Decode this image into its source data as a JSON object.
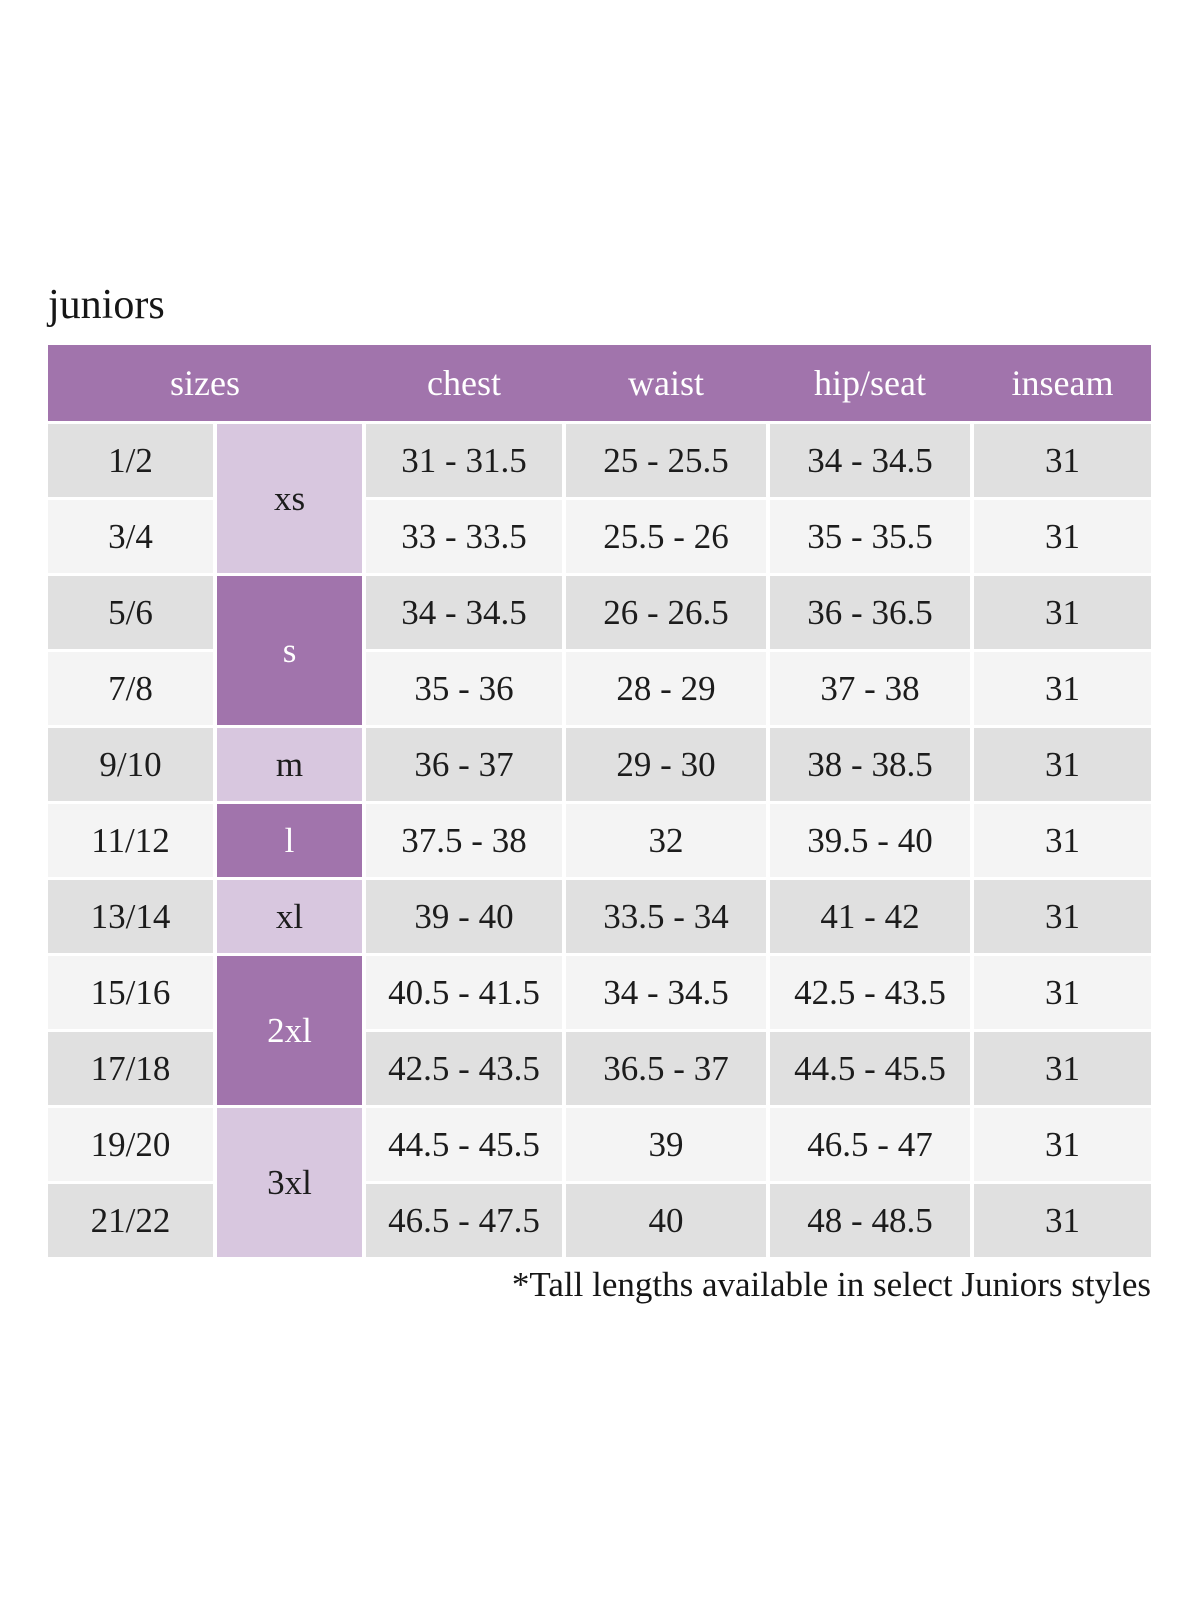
{
  "page": {
    "title": "juniors",
    "footnote": "*Tall lengths available in select Juniors styles"
  },
  "colors": {
    "header_purple": "#a174ac",
    "group_light_purple": "#d8c7df",
    "row_gray_dark": "#e0e0e0",
    "row_gray_light": "#f4f4f4",
    "header_text": "#ffffff",
    "body_text": "#1c1c1c"
  },
  "table": {
    "headers": [
      "sizes",
      "chest",
      "waist",
      "hip/seat",
      "inseam"
    ],
    "size_groups": [
      {
        "label": "xs",
        "spans_sizes": [
          "1/2",
          "3/4"
        ],
        "shade": "light"
      },
      {
        "label": "s",
        "spans_sizes": [
          "5/6",
          "7/8"
        ],
        "shade": "dark"
      },
      {
        "label": "m",
        "spans_sizes": [
          "9/10"
        ],
        "shade": "light"
      },
      {
        "label": "l",
        "spans_sizes": [
          "11/12"
        ],
        "shade": "dark"
      },
      {
        "label": "xl",
        "spans_sizes": [
          "13/14"
        ],
        "shade": "light"
      },
      {
        "label": "2xl",
        "spans_sizes": [
          "15/16",
          "17/18"
        ],
        "shade": "dark"
      },
      {
        "label": "3xl",
        "spans_sizes": [
          "19/20",
          "21/22"
        ],
        "shade": "light"
      }
    ],
    "rows": [
      {
        "size": "1/2",
        "chest": "31 - 31.5",
        "waist": "25 - 25.5",
        "hip_seat": "34 - 34.5",
        "inseam": "31"
      },
      {
        "size": "3/4",
        "chest": "33 - 33.5",
        "waist": "25.5 - 26",
        "hip_seat": "35 - 35.5",
        "inseam": "31"
      },
      {
        "size": "5/6",
        "chest": "34 - 34.5",
        "waist": "26 - 26.5",
        "hip_seat": "36 - 36.5",
        "inseam": "31"
      },
      {
        "size": "7/8",
        "chest": "35 - 36",
        "waist": "28 - 29",
        "hip_seat": "37 - 38",
        "inseam": "31"
      },
      {
        "size": "9/10",
        "chest": "36 - 37",
        "waist": "29 - 30",
        "hip_seat": "38 - 38.5",
        "inseam": "31"
      },
      {
        "size": "11/12",
        "chest": "37.5 - 38",
        "waist": "32",
        "hip_seat": "39.5 - 40",
        "inseam": "31"
      },
      {
        "size": "13/14",
        "chest": "39 - 40",
        "waist": "33.5 - 34",
        "hip_seat": "41 - 42",
        "inseam": "31"
      },
      {
        "size": "15/16",
        "chest": "40.5 - 41.5",
        "waist": "34 - 34.5",
        "hip_seat": "42.5 - 43.5",
        "inseam": "31"
      },
      {
        "size": "17/18",
        "chest": "42.5 - 43.5",
        "waist": "36.5 - 37",
        "hip_seat": "44.5 - 45.5",
        "inseam": "31"
      },
      {
        "size": "19/20",
        "chest": "44.5 - 45.5",
        "waist": "39",
        "hip_seat": "46.5 - 47",
        "inseam": "31"
      },
      {
        "size": "21/22",
        "chest": "46.5 - 47.5",
        "waist": "40",
        "hip_seat": "48 - 48.5",
        "inseam": "31"
      }
    ]
  }
}
